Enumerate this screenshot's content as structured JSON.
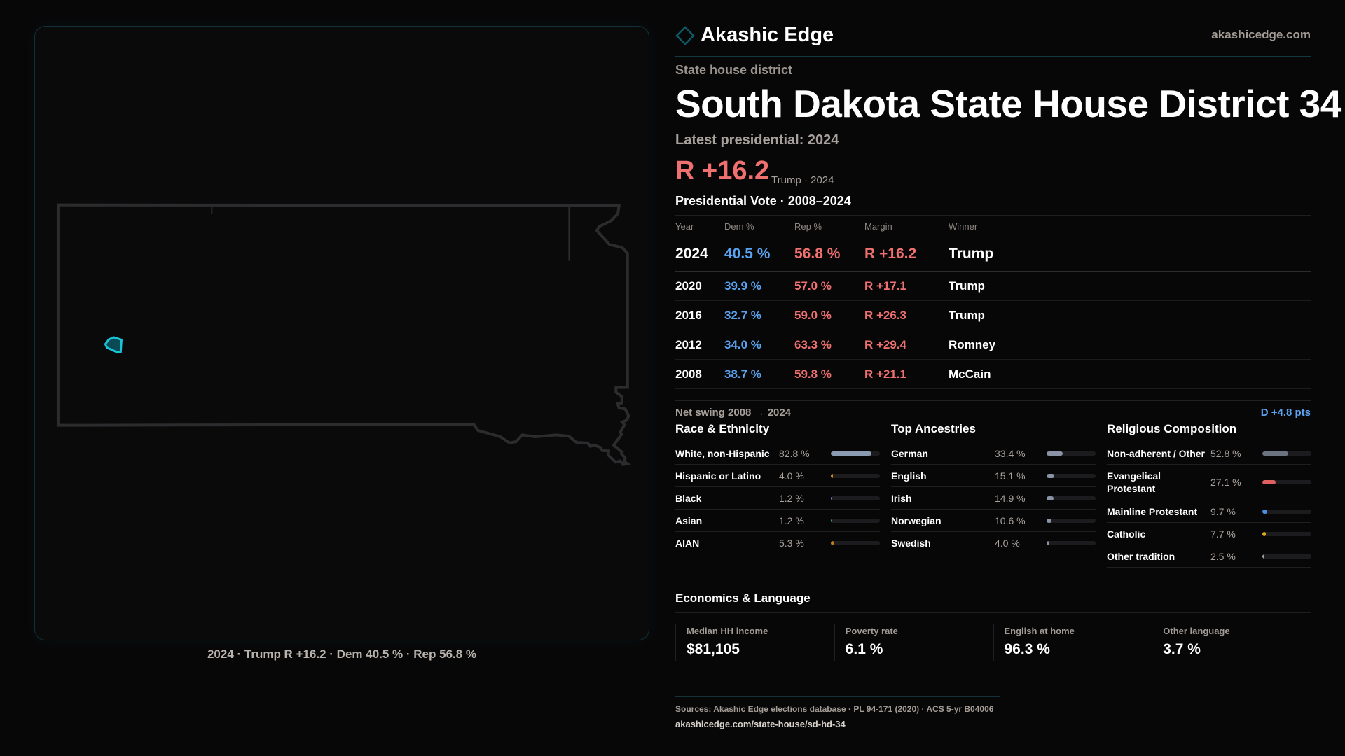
{
  "brand": {
    "name": "Akashic Edge",
    "site": "akashicedge.com",
    "accent": "#19c3d8"
  },
  "header": {
    "kicker": "State house district",
    "title": "South Dakota State House District 34",
    "latest_label": "Latest presidential: 2024",
    "margin": "R +16.2",
    "margin_sub": "Trump · 2024"
  },
  "map": {
    "caption": "2024 · Trump R +16.2 · Dem 40.5 % · Rep 56.8 %",
    "highlight_color": "#19c3d8"
  },
  "presidential": {
    "title": "Presidential Vote · 2008–2024",
    "columns": [
      "Year",
      "Dem %",
      "Rep %",
      "Margin",
      "Winner"
    ],
    "rows": [
      {
        "year": "2024",
        "dem": "40.5 %",
        "rep": "56.8 %",
        "margin": "R +16.2",
        "winner": "Trump"
      },
      {
        "year": "2020",
        "dem": "39.9 %",
        "rep": "57.0 %",
        "margin": "R +17.1",
        "winner": "Trump"
      },
      {
        "year": "2016",
        "dem": "32.7 %",
        "rep": "59.0 %",
        "margin": "R +26.3",
        "winner": "Trump"
      },
      {
        "year": "2012",
        "dem": "34.0 %",
        "rep": "63.3 %",
        "margin": "R +29.4",
        "winner": "Romney"
      },
      {
        "year": "2008",
        "dem": "38.7 %",
        "rep": "59.8 %",
        "margin": "R +21.1",
        "winner": "McCain"
      }
    ],
    "swing_label": "Net swing 2008 → 2024",
    "swing_value": "D +4.8 pts"
  },
  "race": {
    "title": "Race & Ethnicity",
    "items": [
      {
        "label": "White, non-Hispanic",
        "value": "82.8 %",
        "pct": 82.8,
        "color": "#8a9bb2"
      },
      {
        "label": "Hispanic or Latino",
        "value": "4.0 %",
        "pct": 4.0,
        "color": "#d98b1a"
      },
      {
        "label": "Black",
        "value": "1.2 %",
        "pct": 1.2,
        "color": "#8b7fe0"
      },
      {
        "label": "Asian",
        "value": "1.2 %",
        "pct": 1.2,
        "color": "#2fb37a"
      },
      {
        "label": "AIAN",
        "value": "5.3 %",
        "pct": 5.3,
        "color": "#c47a1a"
      }
    ]
  },
  "ancestry": {
    "title": "Top Ancestries",
    "items": [
      {
        "label": "German",
        "value": "33.4 %",
        "pct": 33.4,
        "color": "#8a94a6"
      },
      {
        "label": "English",
        "value": "15.1 %",
        "pct": 15.1,
        "color": "#8a94a6"
      },
      {
        "label": "Irish",
        "value": "14.9 %",
        "pct": 14.9,
        "color": "#8a94a6"
      },
      {
        "label": "Norwegian",
        "value": "10.6 %",
        "pct": 10.6,
        "color": "#8a94a6"
      },
      {
        "label": "Swedish",
        "value": "4.0 %",
        "pct": 4.0,
        "color": "#8a94a6"
      }
    ]
  },
  "religion": {
    "title": "Religious Composition",
    "items": [
      {
        "label": "Non-adherent / Other",
        "value": "52.8 %",
        "pct": 52.8,
        "color": "#6b7280"
      },
      {
        "label": "Evangelical Protestant",
        "value": "27.1 %",
        "pct": 27.1,
        "color": "#e06060"
      },
      {
        "label": "Mainline Protestant",
        "value": "9.7 %",
        "pct": 9.7,
        "color": "#4a90e2"
      },
      {
        "label": "Catholic",
        "value": "7.7 %",
        "pct": 7.7,
        "color": "#e0a81a"
      },
      {
        "label": "Other tradition",
        "value": "2.5 %",
        "pct": 2.5,
        "color": "#9aa0a6"
      }
    ]
  },
  "economics": {
    "title": "Economics & Language",
    "cards": [
      {
        "label": "Median HH income",
        "value": "$81,105"
      },
      {
        "label": "Poverty rate",
        "value": "6.1 %"
      },
      {
        "label": "English at home",
        "value": "96.3 %"
      },
      {
        "label": "Other language",
        "value": "3.7 %"
      }
    ]
  },
  "footer": {
    "sources": "Sources: Akashic Edge elections database · PL 94-171 (2020) · ACS 5-yr B04006",
    "url": "akashicedge.com/state-house/sd-hd-34"
  }
}
